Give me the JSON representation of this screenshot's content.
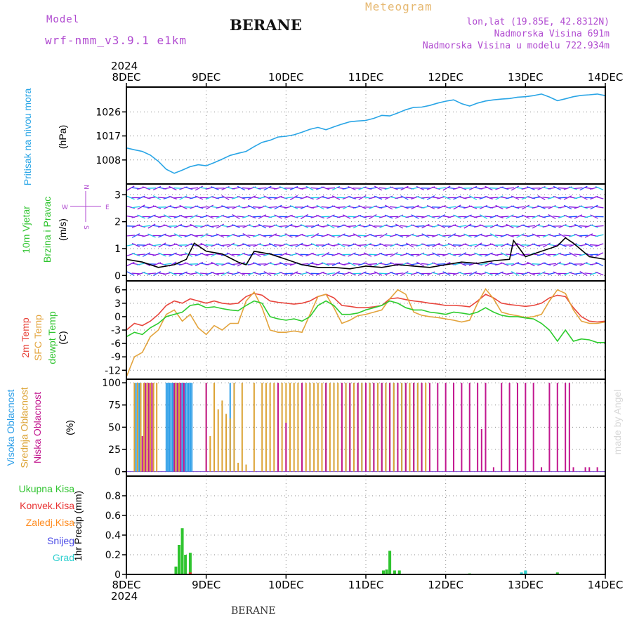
{
  "header": {
    "model_label": "Model",
    "model_name": "wrf-nmm_v3.9.1 e1km",
    "station": "BERANE",
    "kind": "Meteogram",
    "coords": "lon,lat (19.85E, 42.8312N)",
    "elevation": "Nadmorska Visina 691m",
    "model_elevation": "Nadmorska Visina u modelu 722.934m"
  },
  "footer": {
    "station": "BERANE",
    "watermark": "made by Angel"
  },
  "colors": {
    "pressure": "#29a5e6",
    "temp2m": "#e8453c",
    "sfc": "#e3a43d",
    "dewpt": "#2ecc2e",
    "high": "#2c9ee8",
    "mid": "#dca334",
    "low": "#c2178f",
    "total": "#2fc42f",
    "conv": "#e83030",
    "frozen": "#ff8c20",
    "snow": "#4a4ae6",
    "grad": "#2fcfcf",
    "wind_purple": "#8a1ee0",
    "wind_cyan": "#1ec8e8",
    "wind_blue": "#2450ff"
  },
  "chart_data": [
    {
      "panel": "pressure",
      "type": "line",
      "year": "2024",
      "x_ticks": [
        "8DEC",
        "9DEC",
        "10DEC",
        "11DEC",
        "12DEC",
        "13DEC",
        "14DEC"
      ],
      "ylabel": [
        "Pritisak na nivou mora",
        "(hPa)"
      ],
      "yticks": [
        1008,
        1017,
        1026
      ],
      "ylim": [
        999,
        1035.3
      ],
      "series": [
        {
          "x": [
            0,
            0.1,
            0.2,
            0.3,
            0.4,
            0.5,
            0.6,
            0.7,
            0.8,
            0.9,
            1.0,
            1.1,
            1.2,
            1.3,
            1.4,
            1.5,
            1.6,
            1.7,
            1.8,
            1.9,
            2.0,
            2.1,
            2.2,
            2.3,
            2.4,
            2.5,
            2.6,
            2.7,
            2.8,
            2.9,
            3.0,
            3.1,
            3.2,
            3.3,
            3.4,
            3.5,
            3.6,
            3.7,
            3.8,
            3.9,
            4.0,
            4.1,
            4.2,
            4.3,
            4.4,
            4.5,
            4.6,
            4.7,
            4.8,
            4.9,
            5.0,
            5.1,
            5.2,
            5.3,
            5.4,
            5.5,
            5.6,
            5.7,
            5.8,
            5.9,
            6.0
          ],
          "values": [
            1012.5,
            1011.8,
            1011.2,
            1009.8,
            1007.5,
            1004.5,
            1003.0,
            1004.2,
            1005.5,
            1006.2,
            1005.8,
            1007.0,
            1008.3,
            1009.7,
            1010.5,
            1011.2,
            1013.0,
            1014.6,
            1015.4,
            1016.6,
            1016.9,
            1017.4,
            1018.4,
            1019.5,
            1020.2,
            1019.3,
            1020.4,
            1021.4,
            1022.3,
            1022.6,
            1022.8,
            1023.6,
            1024.7,
            1024.5,
            1025.6,
            1026.8,
            1027.7,
            1027.8,
            1028.4,
            1029.3,
            1030.0,
            1030.5,
            1029.1,
            1028.2,
            1029.3,
            1030.1,
            1030.5,
            1030.8,
            1031.0,
            1031.5,
            1031.7,
            1032.1,
            1032.7,
            1031.6,
            1030.2,
            1030.9,
            1031.7,
            1032.2,
            1032.4,
            1032.7,
            1032.1
          ]
        }
      ]
    },
    {
      "panel": "wind",
      "type": "line",
      "ylabel": [
        "10m Vjetar",
        "Brzina i Pravac",
        "(m/s)"
      ],
      "compass": [
        "W",
        "E",
        "N",
        "S"
      ],
      "yticks": [
        0,
        1,
        2,
        3
      ],
      "ylim": [
        -0.2,
        3.4
      ],
      "series": [
        {
          "name": "speed",
          "x": [
            0,
            0.2,
            0.4,
            0.6,
            0.75,
            0.85,
            1.0,
            1.2,
            1.4,
            1.5,
            1.6,
            1.8,
            2.0,
            2.2,
            2.4,
            2.6,
            2.8,
            3.0,
            3.2,
            3.4,
            3.6,
            3.8,
            4.0,
            4.2,
            4.4,
            4.6,
            4.8,
            4.85,
            5.0,
            5.2,
            5.4,
            5.5,
            5.6,
            5.8,
            6.0
          ],
          "values": [
            0.6,
            0.5,
            0.3,
            0.4,
            0.6,
            1.2,
            0.9,
            0.8,
            0.5,
            0.4,
            0.9,
            0.8,
            0.6,
            0.4,
            0.3,
            0.3,
            0.25,
            0.35,
            0.3,
            0.4,
            0.35,
            0.3,
            0.4,
            0.5,
            0.45,
            0.55,
            0.6,
            1.3,
            0.7,
            0.9,
            1.1,
            1.4,
            1.2,
            0.7,
            0.6
          ]
        }
      ]
    },
    {
      "panel": "temperature",
      "type": "line",
      "ylabel": [
        "2m Temp",
        "SFC Temp",
        "dewpt Temp",
        "(C)"
      ],
      "yticks": [
        6,
        3,
        0,
        -3,
        -6,
        -9,
        -12
      ],
      "ylim": [
        -14,
        8
      ],
      "series": [
        {
          "name": "2m Temp",
          "x": [
            0,
            0.1,
            0.2,
            0.3,
            0.4,
            0.5,
            0.6,
            0.7,
            0.8,
            0.9,
            1.0,
            1.1,
            1.2,
            1.3,
            1.4,
            1.5,
            1.6,
            1.7,
            1.8,
            1.9,
            2.0,
            2.1,
            2.2,
            2.3,
            2.4,
            2.5,
            2.6,
            2.7,
            2.8,
            2.9,
            3.0,
            3.1,
            3.2,
            3.3,
            3.4,
            3.5,
            3.6,
            3.7,
            3.8,
            3.9,
            4.0,
            4.1,
            4.2,
            4.3,
            4.4,
            4.5,
            4.6,
            4.7,
            4.8,
            4.9,
            5.0,
            5.1,
            5.2,
            5.3,
            5.4,
            5.5,
            5.6,
            5.7,
            5.8,
            5.9,
            6.0
          ],
          "values": [
            -3,
            -1.5,
            -2,
            -1,
            0.5,
            2.5,
            3.5,
            3.0,
            4.0,
            3.5,
            3.0,
            3.5,
            3.0,
            2.8,
            3.0,
            4.5,
            5.2,
            4.8,
            3.5,
            3.2,
            3.0,
            2.8,
            3.0,
            3.5,
            4.5,
            5.0,
            4.2,
            2.5,
            2.3,
            2.0,
            2.0,
            2.2,
            2.5,
            4.0,
            4.2,
            3.8,
            3.5,
            3.3,
            3.0,
            2.8,
            2.5,
            2.5,
            2.4,
            2.2,
            3.5,
            5.0,
            4.2,
            3.0,
            2.7,
            2.5,
            2.3,
            2.5,
            3.0,
            4.2,
            4.8,
            4.5,
            2.0,
            0.0,
            -1.0,
            -1.2,
            -1.0
          ]
        },
        {
          "name": "SFC Temp",
          "x": [
            0,
            0.1,
            0.2,
            0.3,
            0.4,
            0.5,
            0.6,
            0.7,
            0.8,
            0.9,
            1.0,
            1.1,
            1.2,
            1.3,
            1.4,
            1.5,
            1.6,
            1.7,
            1.8,
            1.9,
            2.0,
            2.1,
            2.2,
            2.3,
            2.4,
            2.5,
            2.6,
            2.7,
            2.8,
            2.9,
            3.0,
            3.1,
            3.2,
            3.3,
            3.4,
            3.5,
            3.6,
            3.7,
            3.8,
            3.9,
            4.0,
            4.1,
            4.2,
            4.3,
            4.4,
            4.5,
            4.6,
            4.7,
            4.8,
            4.9,
            5.0,
            5.1,
            5.2,
            5.3,
            5.4,
            5.5,
            5.6,
            5.7,
            5.8,
            5.9,
            6.0
          ],
          "values": [
            -13.5,
            -9,
            -8,
            -4.5,
            -3,
            0.5,
            1.5,
            -1,
            0.5,
            -2.5,
            -4,
            -2,
            -3,
            -1.5,
            -1.5,
            3.5,
            5.5,
            2,
            -3,
            -3.5,
            -3.5,
            -3.2,
            -3.5,
            0.5,
            4.5,
            5.0,
            2.0,
            -1.5,
            -0.8,
            0.2,
            0.5,
            1.0,
            1.5,
            4.0,
            6.0,
            5.0,
            1.0,
            0.3,
            0.0,
            -0.2,
            -0.5,
            -0.8,
            -1.2,
            -0.8,
            3.0,
            6.2,
            4.0,
            1.0,
            0.5,
            0.2,
            -0.2,
            0.0,
            0.5,
            3.5,
            6.0,
            5.2,
            1.5,
            -1.0,
            -1.5,
            -1.5,
            -1.2
          ]
        },
        {
          "name": "dewpt Temp",
          "x": [
            0,
            0.1,
            0.2,
            0.3,
            0.4,
            0.5,
            0.6,
            0.7,
            0.8,
            0.9,
            1.0,
            1.1,
            1.2,
            1.3,
            1.4,
            1.5,
            1.6,
            1.7,
            1.8,
            1.9,
            2.0,
            2.1,
            2.2,
            2.3,
            2.4,
            2.5,
            2.6,
            2.7,
            2.8,
            2.9,
            3.0,
            3.1,
            3.2,
            3.3,
            3.4,
            3.5,
            3.6,
            3.7,
            3.8,
            3.9,
            4.0,
            4.1,
            4.2,
            4.3,
            4.4,
            4.5,
            4.6,
            4.7,
            4.8,
            4.9,
            5.0,
            5.1,
            5.2,
            5.3,
            5.4,
            5.5,
            5.6,
            5.7,
            5.8,
            5.9,
            6.0
          ],
          "values": [
            -4.5,
            -3.5,
            -4.0,
            -2.5,
            -1.5,
            0.0,
            0.5,
            1.0,
            2.5,
            2.8,
            2.0,
            2.2,
            1.8,
            1.5,
            1.3,
            2.5,
            3.5,
            3.0,
            0.0,
            -0.5,
            -0.8,
            -0.5,
            -1.0,
            0.0,
            2.5,
            3.5,
            2.5,
            0.5,
            0.5,
            0.8,
            1.5,
            2.0,
            2.5,
            3.5,
            3.0,
            2.0,
            1.5,
            1.5,
            1.0,
            0.8,
            0.5,
            1.0,
            0.8,
            0.5,
            1.0,
            2.0,
            1.0,
            0.3,
            0.0,
            0.0,
            -0.3,
            -0.5,
            -1.5,
            -3.0,
            -5.5,
            -3.0,
            -5.5,
            -5.0,
            -5.2,
            -5.8,
            -5.8
          ]
        }
      ]
    },
    {
      "panel": "cloud",
      "type": "bar",
      "ylabel": [
        "Visoka Oblacnost",
        "Srednja Oblacnost",
        "Niska Oblacnost",
        "(%)"
      ],
      "yticks": [
        0,
        25,
        50,
        75,
        100
      ],
      "ylim": [
        -5,
        104
      ],
      "series": [
        {
          "name": "Visoka Oblacnost",
          "x": [
            0.12,
            0.14,
            0.16,
            0.18,
            0.5,
            0.52,
            0.54,
            0.56,
            0.58,
            0.6,
            0.62,
            0.64,
            0.66,
            0.68,
            0.7,
            0.72,
            0.74,
            0.76,
            0.78,
            0.8,
            0.82,
            1.3,
            1.35,
            2.2,
            2.3,
            2.5,
            2.6,
            2.75,
            2.8,
            2.85,
            2.9,
            2.95,
            3.0,
            3.05,
            3.1,
            3.15,
            3.2,
            3.25,
            3.3,
            3.35,
            3.4,
            3.45,
            3.5,
            3.55,
            3.6,
            3.65,
            3.7
          ],
          "values": [
            100,
            100,
            100,
            100,
            100,
            100,
            100,
            100,
            100,
            100,
            100,
            100,
            100,
            100,
            100,
            100,
            100,
            100,
            100,
            100,
            100,
            100,
            100,
            100,
            100,
            100,
            100,
            100,
            100,
            100,
            100,
            100,
            100,
            100,
            100,
            100,
            100,
            100,
            100,
            100,
            100,
            100,
            100,
            100,
            100,
            100,
            100
          ]
        },
        {
          "name": "Srednja Oblacnost",
          "x": [
            0.1,
            0.14,
            0.18,
            0.22,
            0.26,
            0.3,
            0.34,
            0.38,
            0.62,
            0.66,
            1.0,
            1.05,
            1.1,
            1.15,
            1.2,
            1.25,
            1.3,
            1.35,
            1.4,
            1.45,
            1.5,
            1.6,
            1.7,
            1.75,
            1.8,
            1.85,
            1.9,
            1.95,
            2.0,
            2.05,
            2.1,
            2.15,
            2.2,
            2.25,
            2.3,
            2.35,
            2.4,
            2.45,
            2.5,
            2.55,
            2.6,
            2.65,
            2.7,
            2.75,
            2.8,
            2.85,
            2.9,
            2.95,
            3.0,
            3.05,
            3.1,
            3.15,
            3.2,
            3.25,
            3.3,
            3.35,
            3.4,
            3.45,
            3.5,
            3.55,
            3.6,
            3.65,
            3.7,
            3.75
          ],
          "values": [
            100,
            100,
            100,
            100,
            100,
            100,
            100,
            100,
            100,
            100,
            100,
            40,
            100,
            70,
            80,
            65,
            60,
            100,
            10,
            100,
            8,
            100,
            100,
            100,
            100,
            100,
            100,
            100,
            100,
            100,
            100,
            100,
            100,
            100,
            100,
            100,
            100,
            100,
            100,
            100,
            100,
            100,
            100,
            100,
            100,
            100,
            100,
            100,
            100,
            100,
            100,
            100,
            100,
            100,
            100,
            100,
            100,
            100,
            100,
            100,
            100,
            100,
            100,
            100
          ]
        },
        {
          "name": "Niska Oblacnost",
          "x": [
            0.2,
            0.24,
            0.28,
            0.32,
            0.6,
            0.64,
            0.68,
            0.72,
            1.0,
            1.9,
            2.0,
            2.2,
            2.5,
            2.7,
            2.8,
            2.9,
            3.0,
            3.1,
            3.2,
            3.3,
            3.4,
            3.5,
            3.6,
            3.7,
            3.8,
            3.9,
            4.0,
            4.1,
            4.2,
            4.3,
            4.4,
            4.45,
            4.5,
            4.6,
            4.7,
            4.8,
            4.9,
            5.0,
            5.1,
            5.2,
            5.3,
            5.4,
            5.5,
            5.55,
            5.6,
            5.75,
            5.8,
            5.9
          ],
          "values": [
            40,
            100,
            100,
            100,
            100,
            100,
            100,
            100,
            100,
            100,
            55,
            100,
            100,
            100,
            100,
            100,
            100,
            100,
            100,
            100,
            100,
            100,
            100,
            100,
            100,
            100,
            100,
            100,
            100,
            100,
            100,
            48,
            100,
            5,
            100,
            100,
            100,
            100,
            100,
            5,
            100,
            100,
            100,
            100,
            5,
            5,
            5,
            5
          ]
        }
      ]
    },
    {
      "panel": "precip",
      "type": "bar",
      "ylabel": [
        "1hr Precip (mm)"
      ],
      "legend": [
        "Ukupna Kisa",
        "Konvek.Kisa",
        "Zaledj.Kisa",
        "Snijeg",
        "Grad"
      ],
      "yticks": [
        0,
        0.2,
        0.4,
        0.6,
        0.8
      ],
      "ylim": [
        0,
        1.0
      ],
      "x_ticks": [
        "8DEC",
        "9DEC",
        "10DEC",
        "11DEC",
        "12DEC",
        "13DEC",
        "14DEC"
      ],
      "year": "2024",
      "series": [
        {
          "name": "Ukupna Kisa",
          "x": [
            0.62,
            0.66,
            0.7,
            0.74,
            0.8,
            3.22,
            3.26,
            3.3,
            3.36,
            3.42,
            4.3,
            5.0,
            5.4
          ],
          "values": [
            0.08,
            0.3,
            0.47,
            0.2,
            0.22,
            0.04,
            0.05,
            0.24,
            0.04,
            0.04,
            0.01,
            0.03,
            0.02
          ]
        },
        {
          "name": "Konvek.Kisa",
          "x": [
            0.8
          ],
          "values": [
            0.02
          ]
        },
        {
          "name": "Grad",
          "x": [
            4.95,
            5.0
          ],
          "values": [
            0.02,
            0.04
          ]
        }
      ]
    }
  ]
}
